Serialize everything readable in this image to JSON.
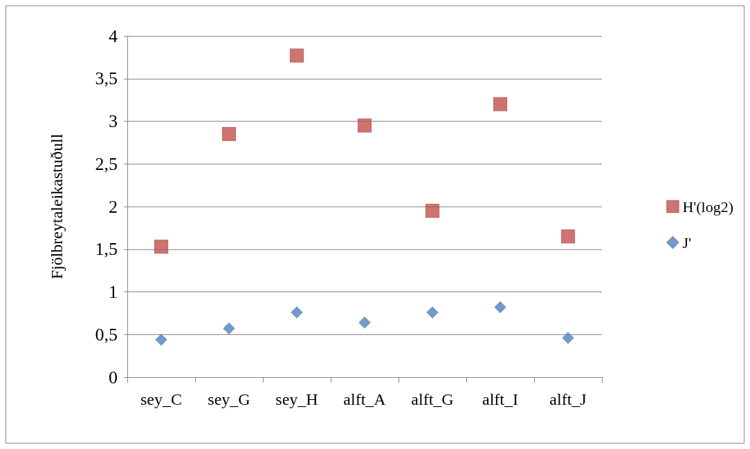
{
  "chart_data": {
    "type": "scatter",
    "ylabel": "Fjölbreytaleikastuðull",
    "categories": [
      "sey_C",
      "sey_G",
      "sey_H",
      "alft_A",
      "alft_G",
      "alft_I",
      "alft_J"
    ],
    "series": [
      {
        "name": "H'(log2)",
        "color": "#c0504d",
        "marker": "square",
        "values": [
          1.53,
          2.85,
          3.77,
          2.95,
          1.95,
          3.2,
          1.65
        ]
      },
      {
        "name": "J'",
        "color": "#4f81bd",
        "marker": "diamond",
        "values": [
          0.44,
          0.57,
          0.76,
          0.64,
          0.76,
          0.82,
          0.46
        ]
      }
    ],
    "ylim": [
      0,
      4
    ],
    "yticks": [
      0,
      {
        "value": 0.5,
        "label": "0,5"
      },
      1,
      {
        "value": 1.5,
        "label": "1,5"
      },
      2,
      {
        "value": 2.5,
        "label": "2,5"
      },
      3,
      {
        "value": 3.5,
        "label": "3,5"
      },
      4
    ],
    "grid": "y",
    "legend": "right"
  }
}
